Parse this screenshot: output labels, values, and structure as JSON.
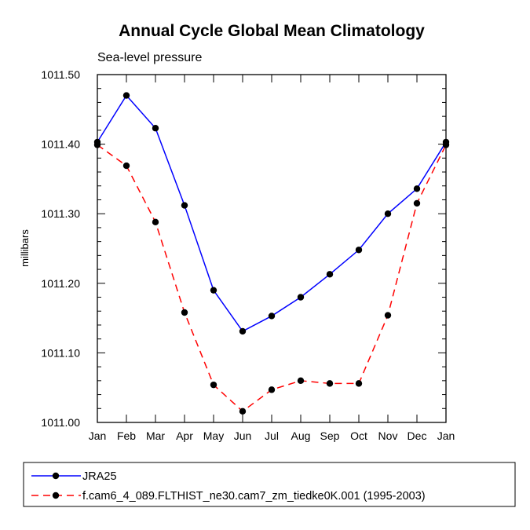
{
  "chart_data": {
    "type": "line",
    "title": "Annual Cycle Global Mean Climatology",
    "subtitle": "Sea-level pressure",
    "xlabel": "",
    "ylabel": "millibars",
    "categories": [
      "Jan",
      "Feb",
      "Mar",
      "Apr",
      "May",
      "Jun",
      "Jul",
      "Aug",
      "Sep",
      "Oct",
      "Nov",
      "Dec",
      "Jan"
    ],
    "ylim": [
      1011.0,
      1011.5
    ],
    "yticks": [
      1011.0,
      1011.1,
      1011.2,
      1011.3,
      1011.4,
      1011.5
    ],
    "ytick_labels": [
      "1011.00",
      "1011.10",
      "1011.20",
      "1011.30",
      "1011.40",
      "1011.50"
    ],
    "grid": false,
    "legend_position": "bottom",
    "series": [
      {
        "name": "JRA25",
        "color": "#0000ff",
        "line_style": "solid",
        "marker": "filled-circle",
        "values": [
          1011.403,
          1011.47,
          1011.423,
          1011.312,
          1011.19,
          1011.131,
          1011.153,
          1011.18,
          1011.213,
          1011.248,
          1011.3,
          1011.336,
          1011.403
        ]
      },
      {
        "name": "f.cam6_4_089.FLTHIST_ne30.cam7_zm_tiedke0K.001 (1995-2003)",
        "color": "#ff0000",
        "line_style": "dashed",
        "marker": "filled-circle",
        "values": [
          1011.399,
          1011.369,
          1011.288,
          1011.158,
          1011.054,
          1011.016,
          1011.047,
          1011.06,
          1011.056,
          1011.056,
          1011.154,
          1011.315,
          1011.399
        ]
      }
    ]
  }
}
